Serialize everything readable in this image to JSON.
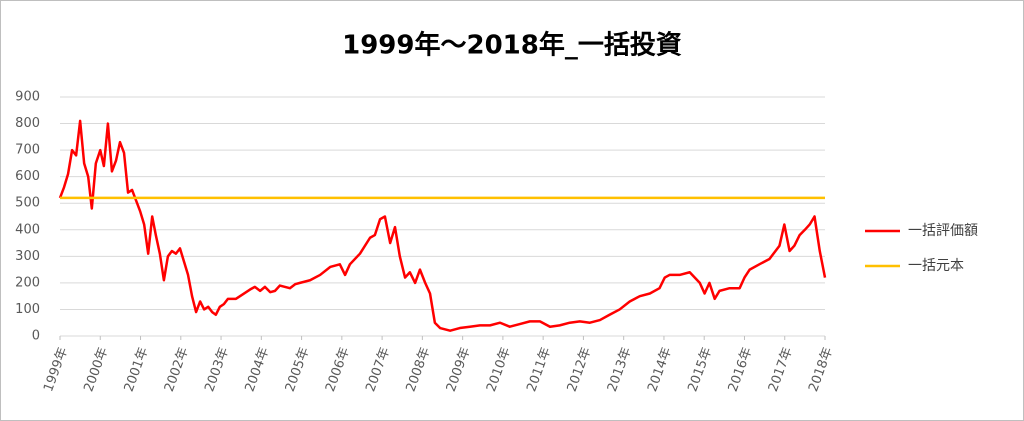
{
  "chart_data": {
    "type": "line",
    "title": "1999年～2018年_一括投資",
    "xlim": [
      1999,
      2018
    ],
    "xticks": [
      {
        "value": 1999,
        "label": "1999年"
      },
      {
        "value": 2000,
        "label": "2000年"
      },
      {
        "value": 2001,
        "label": "2001年"
      },
      {
        "value": 2002,
        "label": "2002年"
      },
      {
        "value": 2003,
        "label": "2003年"
      },
      {
        "value": 2004,
        "label": "2004年"
      },
      {
        "value": 2005,
        "label": "2005年"
      },
      {
        "value": 2006,
        "label": "2006年"
      },
      {
        "value": 2007,
        "label": "2007年"
      },
      {
        "value": 2008,
        "label": "2008年"
      },
      {
        "value": 2009,
        "label": "2009年"
      },
      {
        "value": 2010,
        "label": "2010年"
      },
      {
        "value": 2011,
        "label": "2011年"
      },
      {
        "value": 2012,
        "label": "2012年"
      },
      {
        "value": 2013,
        "label": "2013年"
      },
      {
        "value": 2014,
        "label": "2014年"
      },
      {
        "value": 2015,
        "label": "2015年"
      },
      {
        "value": 2016,
        "label": "2016年"
      },
      {
        "value": 2017,
        "label": "2017年"
      },
      {
        "value": 2018,
        "label": "2018年"
      }
    ],
    "ylim": [
      0,
      900
    ],
    "yticks": [
      0,
      100,
      200,
      300,
      400,
      500,
      600,
      700,
      800,
      900
    ],
    "grid": true,
    "legend": "right",
    "series": [
      {
        "name": "一括評価額",
        "color": "#ff0000",
        "x": [
          1999.0,
          1999.1,
          1999.2,
          1999.3,
          1999.4,
          1999.5,
          1999.6,
          1999.7,
          1999.79,
          1999.89,
          2000.0,
          2000.09,
          2000.19,
          2000.29,
          2000.39,
          2000.49,
          2000.59,
          2000.69,
          2000.79,
          2000.89,
          2000.99,
          2001.09,
          2001.19,
          2001.29,
          2001.38,
          2001.48,
          2001.58,
          2001.68,
          2001.78,
          2001.88,
          2001.98,
          2002.08,
          2002.18,
          2002.28,
          2002.38,
          2002.48,
          2002.58,
          2002.68,
          2002.78,
          2002.87,
          2002.97,
          2003.07,
          2003.17,
          2003.27,
          2003.37,
          2003.47,
          2003.72,
          2003.84,
          2003.97,
          2004.09,
          2004.22,
          2004.34,
          2004.46,
          2004.71,
          2004.84,
          2004.96,
          2005.21,
          2005.46,
          2005.71,
          2005.95,
          2006.08,
          2006.2,
          2006.45,
          2006.7,
          2006.82,
          2006.95,
          2007.07,
          2007.2,
          2007.32,
          2007.44,
          2007.57,
          2007.69,
          2007.82,
          2007.94,
          2008.07,
          2008.19,
          2008.31,
          2008.44,
          2008.69,
          2008.93,
          2009.18,
          2009.43,
          2009.68,
          2009.93,
          2010.17,
          2010.42,
          2010.67,
          2010.92,
          2011.17,
          2011.41,
          2011.66,
          2011.91,
          2012.16,
          2012.41,
          2012.65,
          2012.9,
          2013.15,
          2013.4,
          2013.65,
          2013.89,
          2014.02,
          2014.14,
          2014.39,
          2014.64,
          2014.89,
          2015.01,
          2015.13,
          2015.26,
          2015.38,
          2015.63,
          2015.88,
          2016.0,
          2016.13,
          2016.37,
          2016.62,
          2016.87,
          2016.99,
          2017.12,
          2017.24,
          2017.37,
          2017.5,
          2017.62,
          2017.74,
          2017.87,
          2018.0
        ],
        "values": [
          520,
          560,
          610,
          700,
          680,
          810,
          650,
          600,
          480,
          650,
          700,
          640,
          800,
          620,
          660,
          730,
          690,
          540,
          550,
          510,
          470,
          420,
          310,
          450,
          380,
          310,
          210,
          300,
          320,
          310,
          330,
          280,
          230,
          150,
          90,
          130,
          100,
          110,
          90,
          80,
          110,
          120,
          140,
          140,
          140,
          150,
          175,
          185,
          170,
          185,
          165,
          170,
          190,
          180,
          195,
          200,
          210,
          230,
          260,
          270,
          230,
          270,
          310,
          370,
          380,
          440,
          450,
          350,
          410,
          300,
          220,
          240,
          200,
          250,
          200,
          160,
          50,
          30,
          20,
          30,
          35,
          40,
          40,
          50,
          35,
          45,
          55,
          55,
          35,
          40,
          50,
          55,
          50,
          60,
          80,
          100,
          130,
          150,
          160,
          180,
          220,
          230,
          230,
          240,
          200,
          160,
          200,
          140,
          170,
          180,
          180,
          220,
          250,
          270,
          290,
          340,
          420,
          320,
          340,
          380,
          400,
          420,
          450,
          320,
          220
        ]
      },
      {
        "name": "一括元本",
        "color": "#ffc000",
        "x": [
          1999,
          2018
        ],
        "values": [
          520,
          520
        ]
      }
    ]
  }
}
